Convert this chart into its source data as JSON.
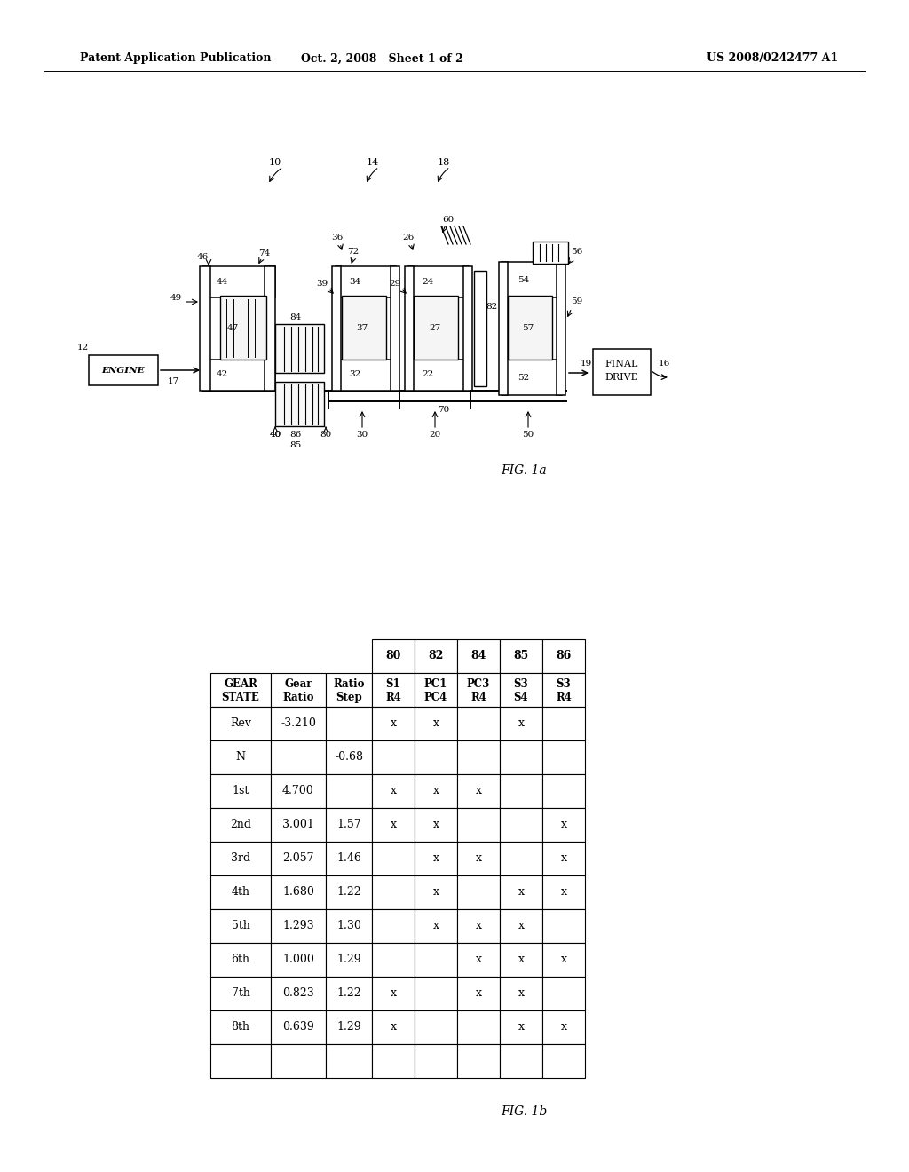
{
  "header_left": "Patent Application Publication",
  "header_mid": "Oct. 2, 2008   Sheet 1 of 2",
  "header_right": "US 2008/0242477 A1",
  "fig1a_label": "FIG. 1a",
  "fig1b_label": "FIG. 1b",
  "bg_color": "#ffffff",
  "table_header_row0": [
    "",
    "",
    "",
    "80",
    "82",
    "84",
    "85",
    "86"
  ],
  "table_header_row1": [
    "GEAR\nSTATE",
    "Gear\nRatio",
    "Ratio\nStep",
    "S1\nR4",
    "PC1\nPC4",
    "PC3\nR4",
    "S3\nS4",
    "S3\nR4"
  ],
  "table_data": [
    [
      "Rev",
      "-3.210",
      "",
      "x",
      "x",
      "",
      "x",
      ""
    ],
    [
      "N",
      "",
      "-0.68",
      "",
      "",
      "",
      "",
      ""
    ],
    [
      "1st",
      "4.700",
      "",
      "x",
      "x",
      "x",
      "",
      ""
    ],
    [
      "2nd",
      "3.001",
      "1.57",
      "x",
      "x",
      "",
      "",
      "x"
    ],
    [
      "3rd",
      "2.057",
      "1.46",
      "",
      "x",
      "x",
      "",
      "x"
    ],
    [
      "4th",
      "1.680",
      "1.22",
      "",
      "x",
      "",
      "x",
      "x"
    ],
    [
      "5th",
      "1.293",
      "1.30",
      "",
      "x",
      "x",
      "x",
      ""
    ],
    [
      "6th",
      "1.000",
      "1.29",
      "",
      "",
      "x",
      "x",
      "x"
    ],
    [
      "7th",
      "0.823",
      "1.22",
      "x",
      "",
      "x",
      "x",
      ""
    ],
    [
      "8th",
      "0.639",
      "1.29",
      "x",
      "",
      "",
      "x",
      "x"
    ]
  ]
}
